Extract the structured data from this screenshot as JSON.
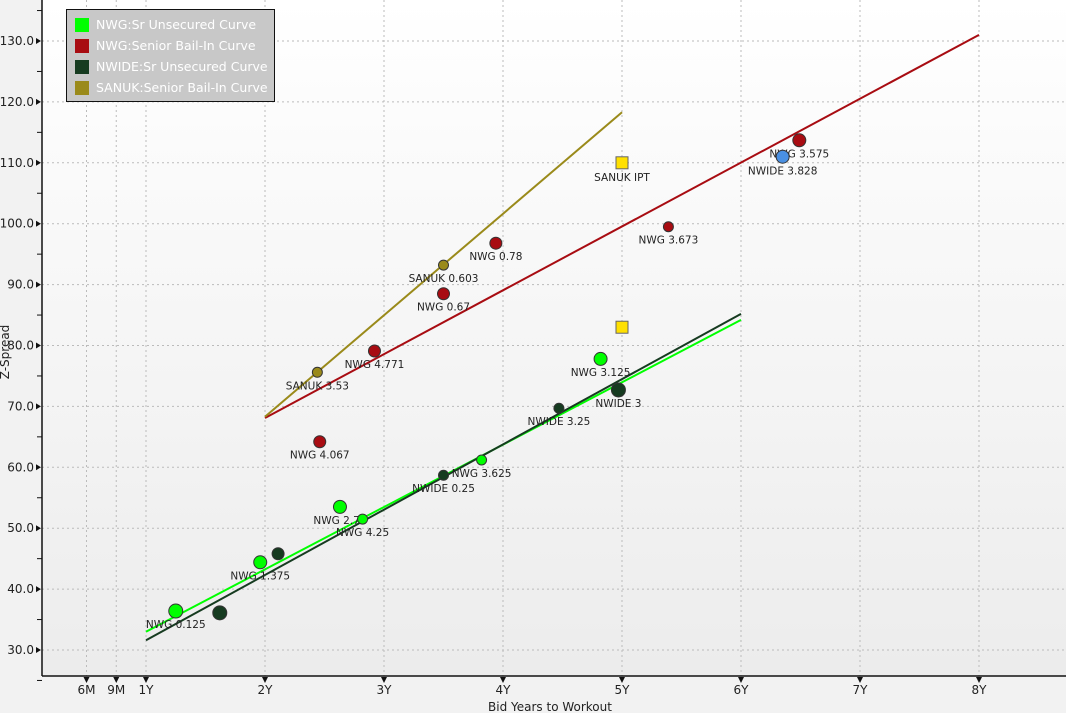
{
  "chart_data": {
    "type": "scatter",
    "xlabel": "Bid Years to Workout",
    "ylabel": "Z-Spread",
    "xlim": [
      0,
      8.73
    ],
    "ylim": [
      25.7,
      136.7
    ],
    "grid": true,
    "legend_position": "top-left",
    "x_ticks": [
      {
        "v": 0.5,
        "label": "6M"
      },
      {
        "v": 0.75,
        "label": "9M"
      },
      {
        "v": 1,
        "label": "1Y"
      },
      {
        "v": 2,
        "label": "2Y"
      },
      {
        "v": 3,
        "label": "3Y"
      },
      {
        "v": 4,
        "label": "4Y"
      },
      {
        "v": 5,
        "label": "5Y"
      },
      {
        "v": 6,
        "label": "6Y"
      },
      {
        "v": 7,
        "label": "7Y"
      },
      {
        "v": 8,
        "label": "8Y"
      }
    ],
    "y_ticks": [
      {
        "v": 30,
        "label": "30.0"
      },
      {
        "v": 40,
        "label": "40.0"
      },
      {
        "v": 50,
        "label": "50.0"
      },
      {
        "v": 60,
        "label": "60.0"
      },
      {
        "v": 70,
        "label": "70.0"
      },
      {
        "v": 80,
        "label": "80.0"
      },
      {
        "v": 90,
        "label": "90.0"
      },
      {
        "v": 100,
        "label": "100.0"
      },
      {
        "v": 110,
        "label": "110.0"
      },
      {
        "v": 120,
        "label": "120.0"
      },
      {
        "v": 130,
        "label": "130.0"
      }
    ],
    "series": [
      {
        "name": "NWG:Sr Unsecured Curve",
        "color": "#00ff00",
        "curve": [
          [
            1.0,
            33.0
          ],
          [
            6.0,
            84.2
          ]
        ],
        "points": [
          {
            "x": 1.25,
            "y": 36.4,
            "label": "NWG 0.125",
            "r": 7
          },
          {
            "x": 1.96,
            "y": 44.4,
            "label": "NWG 1.375",
            "r": 6.5
          },
          {
            "x": 2.63,
            "y": 53.5,
            "label": "NWG 2.75",
            "r": 6.5
          },
          {
            "x": 2.82,
            "y": 51.5,
            "label": "NWG 4.25",
            "r": 5
          },
          {
            "x": 3.82,
            "y": 61.2,
            "label": "NWG 3.625",
            "r": 5
          },
          {
            "x": 4.82,
            "y": 77.8,
            "label": "NWG 3.125",
            "r": 6.5
          }
        ]
      },
      {
        "name": "NWG:Senior Bail-In Curve",
        "color": "#a80c12",
        "curve": [
          [
            2.0,
            68.1
          ],
          [
            8.0,
            131.0
          ]
        ],
        "points": [
          {
            "x": 2.46,
            "y": 64.2,
            "label": "NWG 4.067",
            "r": 6
          },
          {
            "x": 2.92,
            "y": 79.1,
            "label": "NWG 4.771",
            "r": 6
          },
          {
            "x": 3.5,
            "y": 88.5,
            "label": "NWG 0.67",
            "r": 6
          },
          {
            "x": 3.94,
            "y": 96.8,
            "label": "NWG 0.78",
            "r": 6
          },
          {
            "x": 5.39,
            "y": 99.5,
            "label": "NWG 3.673",
            "r": 5
          },
          {
            "x": 6.49,
            "y": 113.7,
            "label": "NWG 3.575",
            "r": 6.5
          }
        ]
      },
      {
        "name": "NWIDE:Sr Unsecured Curve",
        "color": "#163b20",
        "curve": [
          [
            1.0,
            31.6
          ],
          [
            6.0,
            85.2
          ]
        ],
        "points": [
          {
            "x": 1.62,
            "y": 36.1,
            "label": "",
            "r": 7
          },
          {
            "x": 2.11,
            "y": 45.8,
            "label": "",
            "r": 6
          },
          {
            "x": 3.5,
            "y": 58.7,
            "label": "NWIDE 0.25",
            "r": 5
          },
          {
            "x": 4.47,
            "y": 69.7,
            "label": "NWIDE 3.25",
            "r": 5
          },
          {
            "x": 4.97,
            "y": 72.7,
            "label": "NWIDE 3",
            "r": 7
          }
        ]
      },
      {
        "name": "SANUK:Senior Bail-In Curve",
        "color": "#9a8a1a",
        "curve": [
          [
            2.0,
            68.3
          ],
          [
            5.0,
            118.3
          ]
        ],
        "points": [
          {
            "x": 2.44,
            "y": 75.6,
            "label": "SANUK 3.53",
            "r": 5
          },
          {
            "x": 3.5,
            "y": 93.2,
            "label": "SANUK 0.603",
            "r": 5
          }
        ]
      }
    ],
    "extra_points": [
      {
        "x": 5.0,
        "y": 110.0,
        "label": "SANUK IPT",
        "shape": "square",
        "color": "#ffe000"
      },
      {
        "x": 5.0,
        "y": 83.0,
        "label": "",
        "shape": "square",
        "color": "#ffe000"
      },
      {
        "x": 6.35,
        "y": 111.0,
        "label": "NWIDE 3.828",
        "shape": "circle",
        "color": "#4a90e2"
      }
    ]
  }
}
